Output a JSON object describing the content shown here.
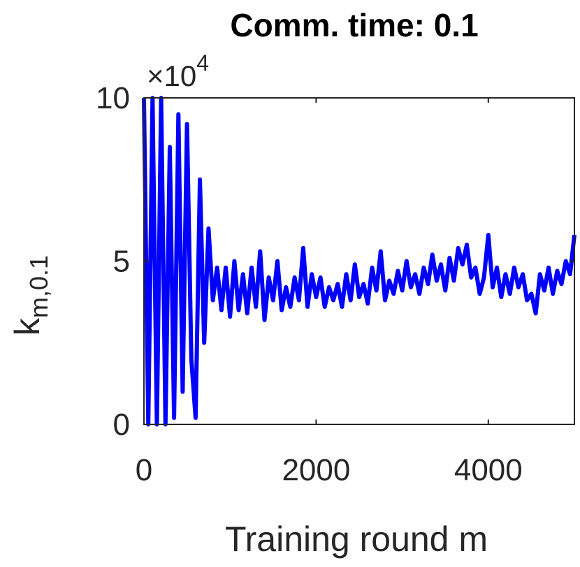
{
  "chart_data": {
    "type": "line",
    "title": "Comm. time: 0.1",
    "xlabel": "Training round m",
    "ylabel": "k",
    "ylabel_sub": "m,0.1",
    "y_multiplier": "×10",
    "y_multiplier_exp": "4",
    "x": [
      0,
      50,
      100,
      150,
      200,
      250,
      300,
      350,
      400,
      450,
      500,
      550,
      600,
      650,
      700,
      750,
      800,
      850,
      900,
      950,
      1000,
      1050,
      1100,
      1150,
      1200,
      1250,
      1300,
      1350,
      1400,
      1450,
      1500,
      1550,
      1600,
      1650,
      1700,
      1750,
      1800,
      1850,
      1900,
      1950,
      2000,
      2050,
      2100,
      2150,
      2200,
      2250,
      2300,
      2350,
      2400,
      2450,
      2500,
      2550,
      2600,
      2650,
      2700,
      2750,
      2800,
      2850,
      2900,
      2950,
      3000,
      3050,
      3100,
      3150,
      3200,
      3250,
      3300,
      3350,
      3400,
      3450,
      3500,
      3550,
      3600,
      3650,
      3700,
      3750,
      3800,
      3850,
      3900,
      3950,
      4000,
      4050,
      4100,
      4150,
      4200,
      4250,
      4300,
      4350,
      4400,
      4450,
      4500,
      4550,
      4600,
      4650,
      4700,
      4750,
      4800,
      4850,
      4900,
      4950,
      5000
    ],
    "series": [
      {
        "color": "#0000ff",
        "values": [
          10,
          0,
          10,
          0,
          10,
          0,
          8.5,
          0.2,
          9.5,
          1,
          9.2,
          2,
          0.2,
          7.5,
          2.5,
          6,
          3.8,
          4.8,
          3.5,
          4.8,
          3.3,
          5,
          3.5,
          4.6,
          3.4,
          4.8,
          3.6,
          5.3,
          3.2,
          4.5,
          3.8,
          5,
          3.5,
          4.2,
          3.6,
          4.5,
          3.8,
          5.4,
          3.6,
          4.6,
          3.9,
          4.5,
          3.6,
          4.2,
          3.8,
          4.3,
          3.6,
          4.6,
          3.8,
          4.9,
          3.9,
          4.3,
          3.7,
          4.8,
          4.1,
          5.3,
          3.8,
          4.4,
          4.0,
          4.7,
          4.1,
          5.0,
          4.2,
          4.6,
          4.0,
          4.8,
          4.3,
          5.2,
          4.4,
          4.9,
          4.1,
          5.1,
          4.4,
          5.4,
          4.9,
          5.5,
          4.5,
          4.8,
          4.0,
          4.5,
          5.8,
          4.2,
          4.8,
          3.9,
          4.6,
          4.0,
          4.8,
          4.2,
          4.6,
          3.8,
          4.0,
          3.4,
          4.6,
          4.1,
          4.8,
          4.0,
          4.7,
          4.3,
          5.0,
          4.6,
          5.8
        ]
      }
    ],
    "xlim": [
      0,
      5000
    ],
    "xticks": [
      0,
      2000,
      4000
    ],
    "ylim": [
      0,
      10
    ],
    "yticks": [
      0,
      5,
      10
    ]
  }
}
